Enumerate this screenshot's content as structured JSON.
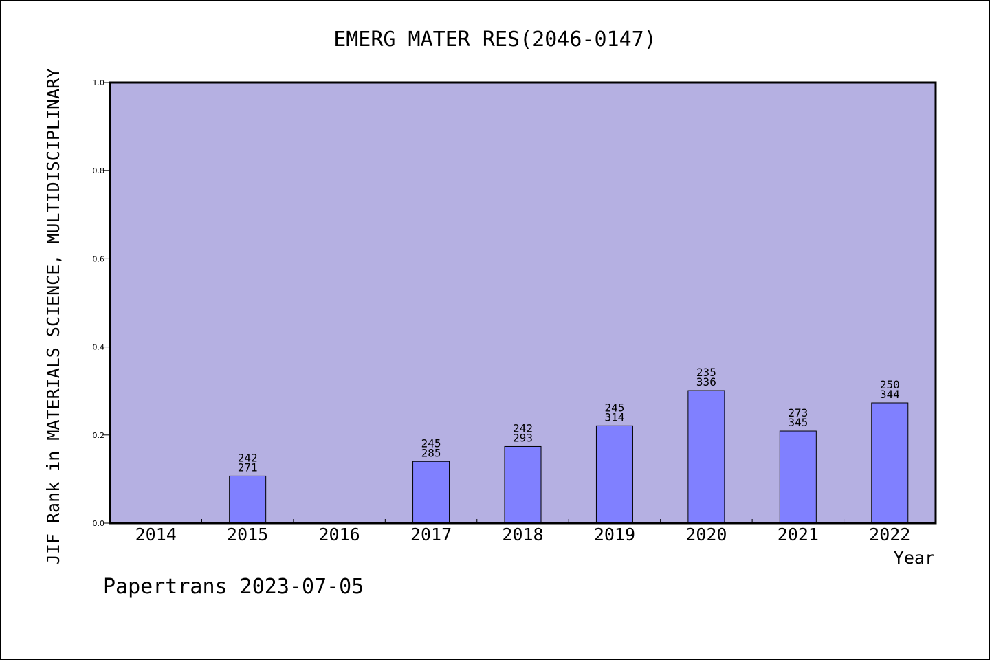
{
  "chart_data": {
    "type": "bar",
    "title": "EMERG MATER RES(2046-0147)",
    "ylabel": "JIF Rank in MATERIALS SCIENCE, MULTIDISCIPLINARY",
    "xlabel": "Year",
    "ylim": [
      0,
      1.0
    ],
    "yticks": [
      "0.0",
      "0.2",
      "0.4",
      "0.6",
      "0.8",
      "1.0"
    ],
    "categories": [
      "2014",
      "2015",
      "2016",
      "2017",
      "2018",
      "2019",
      "2020",
      "2021",
      "2022"
    ],
    "values": [
      null,
      0.107,
      null,
      0.14,
      0.174,
      0.221,
      0.301,
      0.209,
      0.273
    ],
    "labels_top": [
      null,
      "242",
      null,
      "245",
      "242",
      "245",
      "235",
      "273",
      "250"
    ],
    "labels_bottom": [
      null,
      "271",
      null,
      "285",
      "293",
      "314",
      "336",
      "345",
      "344"
    ],
    "grid": false,
    "colors": {
      "plot_bg": "#b5b0e2",
      "bar": "#8080ff",
      "axis": "#000000"
    }
  },
  "footer": "Papertrans 2023-07-05"
}
